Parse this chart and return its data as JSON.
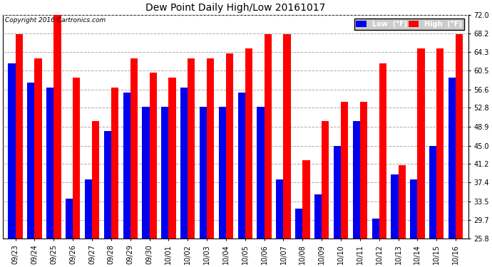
{
  "title": "Dew Point Daily High/Low 20161017",
  "copyright": "Copyright 2016 Cartronics.com",
  "dates": [
    "09/23",
    "09/24",
    "09/25",
    "09/26",
    "09/27",
    "09/28",
    "09/29",
    "09/30",
    "10/01",
    "10/02",
    "10/03",
    "10/04",
    "10/05",
    "10/06",
    "10/07",
    "10/08",
    "10/09",
    "10/10",
    "10/11",
    "10/12",
    "10/13",
    "10/14",
    "10/15",
    "10/16"
  ],
  "low_values": [
    62,
    58,
    57,
    34,
    38,
    48,
    56,
    53,
    53,
    57,
    53,
    53,
    56,
    53,
    38,
    32,
    35,
    45,
    50,
    30,
    39,
    38,
    45,
    59
  ],
  "high_values": [
    68,
    63,
    72,
    59,
    50,
    57,
    63,
    60,
    59,
    63,
    63,
    64,
    65,
    68,
    68,
    42,
    50,
    54,
    54,
    62,
    41,
    65,
    65,
    68
  ],
  "y_min": 25.8,
  "y_max": 72.0,
  "y_ticks": [
    25.8,
    29.7,
    33.5,
    37.4,
    41.2,
    45.0,
    48.9,
    52.8,
    56.6,
    60.5,
    64.3,
    68.2,
    72.0
  ],
  "low_color": "#0000ee",
  "high_color": "#ff0000",
  "background_color": "#ffffff",
  "grid_color": "#aaaaaa",
  "bar_width": 0.38
}
